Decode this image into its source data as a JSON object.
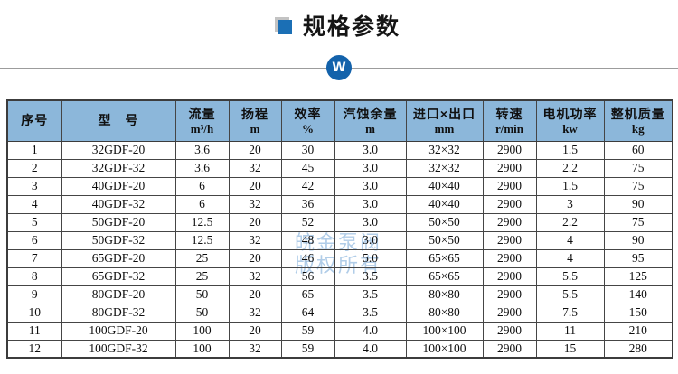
{
  "title": {
    "text": "规格参数"
  },
  "badge": {
    "letter": "W"
  },
  "watermark": {
    "line1": "皖金泵阀",
    "line2": "版权所有"
  },
  "colors": {
    "accent": "#1b6fb5",
    "badge": "#1362ab",
    "header_bg": "#8cb7da",
    "watermark": "#a9c8e6"
  },
  "table": {
    "columns": [
      {
        "label": "序号",
        "unit": ""
      },
      {
        "label": "型　号",
        "unit": ""
      },
      {
        "label": "流量",
        "unit": "m³/h"
      },
      {
        "label": "扬程",
        "unit": "m"
      },
      {
        "label": "效率",
        "unit": "%"
      },
      {
        "label": "汽蚀余量",
        "unit": "m"
      },
      {
        "label": "进口×出口",
        "unit": "mm"
      },
      {
        "label": "转速",
        "unit": "r/min"
      },
      {
        "label": "电机功率",
        "unit": "kw"
      },
      {
        "label": "整机质量",
        "unit": "kg"
      }
    ],
    "rows": [
      [
        "1",
        "32GDF-20",
        "3.6",
        "20",
        "30",
        "3.0",
        "32×32",
        "2900",
        "1.5",
        "60"
      ],
      [
        "2",
        "32GDF-32",
        "3.6",
        "32",
        "45",
        "3.0",
        "32×32",
        "2900",
        "2.2",
        "75"
      ],
      [
        "3",
        "40GDF-20",
        "6",
        "20",
        "42",
        "3.0",
        "40×40",
        "2900",
        "1.5",
        "75"
      ],
      [
        "4",
        "40GDF-32",
        "6",
        "32",
        "36",
        "3.0",
        "40×40",
        "2900",
        "3",
        "90"
      ],
      [
        "5",
        "50GDF-20",
        "12.5",
        "20",
        "52",
        "3.0",
        "50×50",
        "2900",
        "2.2",
        "75"
      ],
      [
        "6",
        "50GDF-32",
        "12.5",
        "32",
        "48",
        "3.0",
        "50×50",
        "2900",
        "4",
        "90"
      ],
      [
        "7",
        "65GDF-20",
        "25",
        "20",
        "46",
        "5.0",
        "65×65",
        "2900",
        "4",
        "95"
      ],
      [
        "8",
        "65GDF-32",
        "25",
        "32",
        "56",
        "3.5",
        "65×65",
        "2900",
        "5.5",
        "125"
      ],
      [
        "9",
        "80GDF-20",
        "50",
        "20",
        "65",
        "3.5",
        "80×80",
        "2900",
        "5.5",
        "140"
      ],
      [
        "10",
        "80GDF-32",
        "50",
        "32",
        "64",
        "3.5",
        "80×80",
        "2900",
        "7.5",
        "150"
      ],
      [
        "11",
        "100GDF-20",
        "100",
        "20",
        "59",
        "4.0",
        "100×100",
        "2900",
        "11",
        "210"
      ],
      [
        "12",
        "100GDF-32",
        "100",
        "32",
        "59",
        "4.0",
        "100×100",
        "2900",
        "15",
        "280"
      ]
    ]
  }
}
